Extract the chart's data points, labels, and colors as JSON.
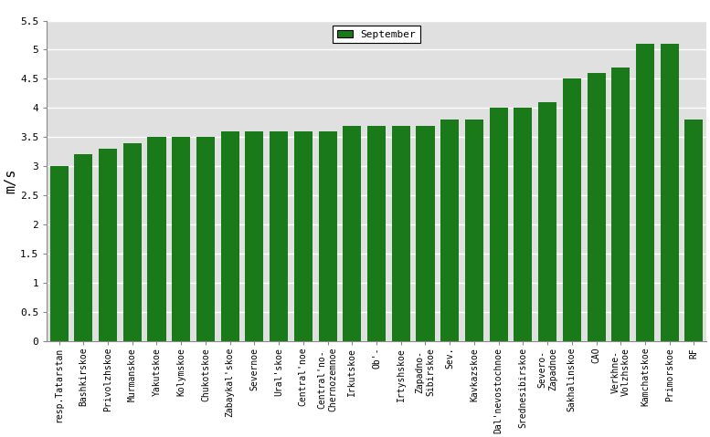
{
  "categories": [
    "resp.Tatarstan",
    "Bashkirskoe",
    "Privolzhskoe",
    "Murmanskoe",
    "Yakutskoe",
    "Kolymskoe",
    "Chukotskoe",
    "Zabaykal'skoe",
    "Severnoe",
    "Ural'skoe",
    "Central'noe",
    "Central'no-\nChernozemnoe",
    "Irkutskoe",
    "Ob'-",
    "Irtyshskoe",
    "Zapadno-\nSibirskoe",
    "Sev.",
    "Kavkazskoe",
    "Dal'nevostochnoe",
    "Srednesibirskoe",
    "Severo-\nZapadnoe",
    "Sakhalinskoe",
    "CAO",
    "Verkhne-\nVolzhskoe",
    "Kamchatskoe",
    "Primorskoe",
    "RF"
  ],
  "values": [
    3.0,
    3.2,
    3.3,
    3.4,
    3.5,
    3.5,
    3.5,
    3.6,
    3.6,
    3.6,
    3.6,
    3.6,
    3.7,
    3.7,
    3.7,
    3.7,
    3.8,
    3.8,
    4.0,
    4.0,
    4.1,
    4.5,
    4.6,
    4.7,
    5.1,
    5.1,
    3.8
  ],
  "bar_color": "#1a7a1a",
  "ylabel": "m/s",
  "ylim": [
    0,
    5.5
  ],
  "yticks": [
    0,
    0.5,
    1.0,
    1.5,
    2.0,
    2.5,
    3.0,
    3.5,
    4.0,
    4.5,
    5.0,
    5.5
  ],
  "legend_label": "September",
  "legend_color": "#1a7a1a",
  "plot_bg_color": "#e0e0e0",
  "fig_bg_color": "#ffffff",
  "grid_color": "#ffffff",
  "tick_fontsize": 7,
  "ylabel_fontsize": 11,
  "legend_fontsize": 8,
  "bar_width": 0.75
}
